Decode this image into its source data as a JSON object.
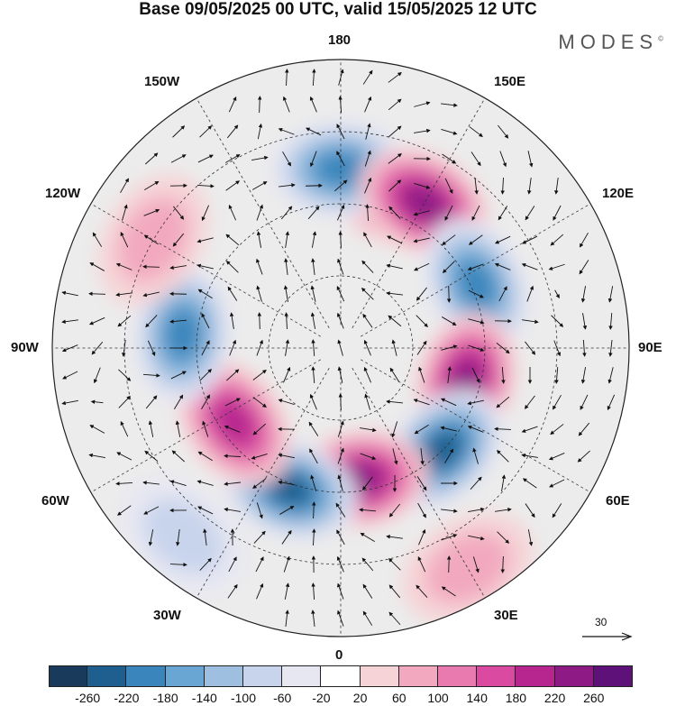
{
  "title": "Base 09/05/2025 00 UTC, valid 15/05/2025 12 UTC",
  "brand": "MODES",
  "brand_mark": "©",
  "longitude_labels": {
    "top": "180",
    "bottom": "0",
    "left": "90W",
    "right": "90E",
    "upper_left_1": "150W",
    "upper_left_2": "120W",
    "upper_right_1": "150E",
    "upper_right_2": "120E",
    "lower_left_1": "60W",
    "lower_left_2": "30W",
    "lower_right_1": "60E",
    "lower_right_2": "30E"
  },
  "reference_vector": {
    "value": "30"
  },
  "colorbar": {
    "colors": [
      "#1a3a5c",
      "#1f5f8f",
      "#3a86bc",
      "#6aa6d3",
      "#9ebfe0",
      "#c8d4ec",
      "#e7e7f2",
      "#ffffff",
      "#f6d3d6",
      "#f2a9c0",
      "#e87ab0",
      "#d94aa0",
      "#b7268f",
      "#8e1a86",
      "#5e1279"
    ],
    "labels": [
      "-260",
      "-220",
      "-180",
      "-140",
      "-100",
      "-60",
      "-20",
      "20",
      "60",
      "100",
      "140",
      "180",
      "220",
      "260"
    ]
  },
  "anomaly_centers": [
    {
      "value": 220,
      "lon": 160,
      "r": 0.56
    },
    {
      "value": -200,
      "lon": 180,
      "r": 0.62
    },
    {
      "value": 240,
      "lon": 150,
      "r": 0.58
    },
    {
      "value": -200,
      "lon": 115,
      "r": 0.52
    },
    {
      "value": 240,
      "lon": 75,
      "r": 0.45
    },
    {
      "value": -240,
      "lon": 45,
      "r": 0.5
    },
    {
      "value": 260,
      "lon": 8,
      "r": 0.46
    },
    {
      "value": -240,
      "lon": -20,
      "r": 0.52
    },
    {
      "value": 200,
      "lon": -55,
      "r": 0.45
    },
    {
      "value": -200,
      "lon": -95,
      "r": 0.55
    },
    {
      "value": 100,
      "lon": -120,
      "r": 0.75
    },
    {
      "value": -100,
      "lon": -40,
      "r": 0.85
    },
    {
      "value": 80,
      "lon": 30,
      "r": 0.88
    }
  ]
}
